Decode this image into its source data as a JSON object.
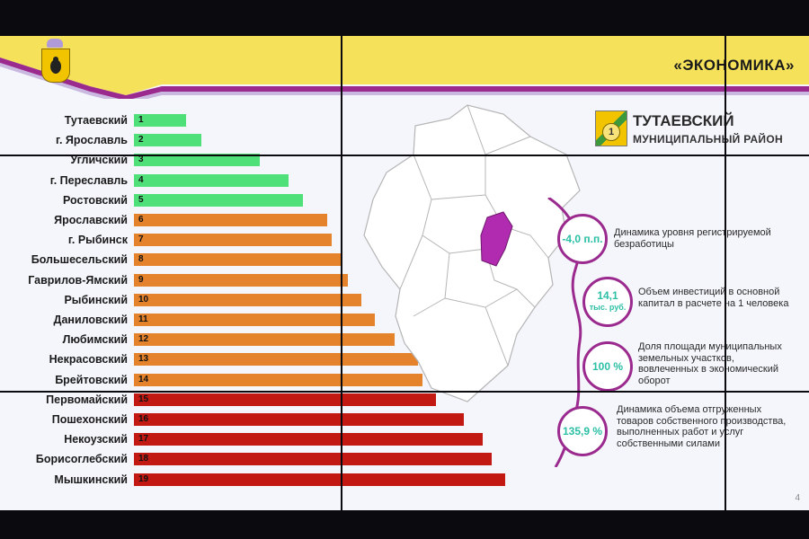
{
  "header": {
    "title": "«ЭКОНОМИКА»"
  },
  "region": {
    "name": "ТУТАЕВСКИЙ",
    "subtitle": "МУНИЦИПАЛЬНЫЙ РАЙОН",
    "icon_digit": "1"
  },
  "colors": {
    "green": "#4fe07a",
    "orange": "#e5832c",
    "red": "#c21a12",
    "accent": "#9b2a8f",
    "teal": "#2bbfa6",
    "yellow": "#f5e25a"
  },
  "chart_data": {
    "type": "bar",
    "categories": [
      "Тутаевский",
      "г. Ярославль",
      "Угличский",
      "г. Переславль",
      "Ростовский",
      "Ярославский",
      "г. Рыбинск",
      "Большесельский",
      "Гаврилов-Ямский",
      "Рыбинский",
      "Даниловский",
      "Любимский",
      "Некрасовский",
      "Брейтовский",
      "Первомайский",
      "Пошехонский",
      "Некоузский",
      "Борисоглебский",
      "Мышкинский"
    ],
    "ranks": [
      "1",
      "2",
      "3",
      "4",
      "5",
      "6",
      "7",
      "8",
      "9",
      "10",
      "11",
      "12",
      "13",
      "14",
      "15",
      "16",
      "17",
      "18",
      "19"
    ],
    "values": [
      1,
      2,
      3,
      4,
      5,
      6,
      7,
      8,
      9,
      10,
      11,
      12,
      13,
      14,
      15,
      16,
      17,
      18,
      19
    ],
    "bar_lengths": [
      58,
      75,
      140,
      172,
      188,
      215,
      220,
      232,
      238,
      253,
      268,
      290,
      316,
      321,
      336,
      367,
      388,
      398,
      413
    ],
    "groups": [
      "green",
      "green",
      "green",
      "green",
      "green",
      "orange",
      "orange",
      "orange",
      "orange",
      "orange",
      "orange",
      "orange",
      "orange",
      "orange",
      "red",
      "red",
      "red",
      "red",
      "red"
    ]
  },
  "indicators": [
    {
      "value": "-4,0 п.п.",
      "unit": "",
      "text": "Динамика уровня регистрируемой безработицы"
    },
    {
      "value": "14,1",
      "unit": "тыс. руб.",
      "text": "Объем инвестиций в основной капитал в расчете на 1 человека"
    },
    {
      "value": "100 %",
      "unit": "",
      "text": "Доля площади муниципальных земельных участков, вовлеченных в экономический оборот"
    },
    {
      "value": "135,9 %",
      "unit": "",
      "text": "Динамика объема отгруженных товаров собственного производства, выполненных работ и услуг собственными силами"
    }
  ],
  "footer": {
    "page_number": "4"
  }
}
